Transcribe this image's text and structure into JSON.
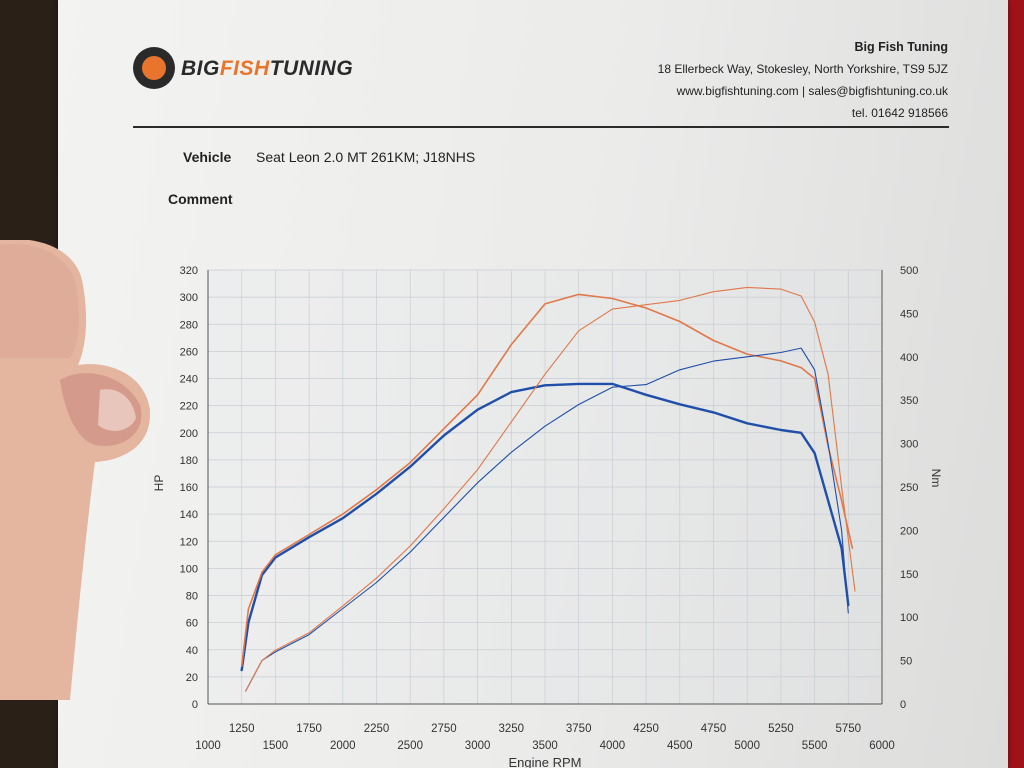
{
  "header": {
    "logo_part1": "BIG",
    "logo_part2": "FISH",
    "logo_part3": "TUNING",
    "company_name": "Big Fish Tuning",
    "address": "18 Ellerbeck Way, Stokesley, North Yorkshire, TS9 5JZ",
    "web_email": "www.bigfishtuning.com | sales@bigfishtuning.co.uk",
    "phone": "tel. 01642 918566"
  },
  "vehicle": {
    "label": "Vehicle",
    "value": "Seat Leon 2.0 MT 261KM; J18NHS"
  },
  "comment": {
    "label": "Comment"
  },
  "colors": {
    "power": "#1f4fa8",
    "torque": "#e0784a",
    "grid": "#c9cdd4",
    "axis": "#555555"
  },
  "chart_data": {
    "type": "line",
    "xlabel": "Engine RPM",
    "ylabel": "HP",
    "y2label": "Nm",
    "xlim": [
      1000,
      6000
    ],
    "ylim": [
      0,
      320
    ],
    "y2lim": [
      0,
      500
    ],
    "xticks": [
      "1000",
      "1250",
      "1500",
      "1750",
      "2000",
      "2250",
      "2500",
      "2750",
      "3000",
      "3250",
      "3500",
      "3750",
      "4000",
      "4250",
      "4500",
      "4750",
      "5000",
      "5250",
      "5500",
      "5750",
      "6000"
    ],
    "yticks": [
      "0",
      "20",
      "40",
      "60",
      "80",
      "100",
      "120",
      "140",
      "160",
      "180",
      "200",
      "220",
      "240",
      "260",
      "280",
      "300",
      "320"
    ],
    "y2ticks": [
      "0",
      "50",
      "100",
      "150",
      "200",
      "250",
      "300",
      "350",
      "400",
      "450",
      "500"
    ],
    "grid": true,
    "series": [
      {
        "axis": "left",
        "color": "#1f4fa8",
        "width": 2.4,
        "x": [
          1250,
          1300,
          1400,
          1500,
          1750,
          2000,
          2250,
          2500,
          2750,
          3000,
          3250,
          3500,
          3750,
          4000,
          4250,
          4500,
          4750,
          5000,
          5250,
          5400,
          5500,
          5600,
          5700,
          5750
        ],
        "y": [
          25,
          60,
          95,
          108,
          123,
          137,
          155,
          175,
          198,
          217,
          230,
          235,
          236,
          236,
          228,
          221,
          215,
          207,
          202,
          200,
          185,
          150,
          115,
          73
        ]
      },
      {
        "axis": "left",
        "color": "#e0784a",
        "width": 1.6,
        "x": [
          1250,
          1300,
          1400,
          1500,
          1750,
          2000,
          2250,
          2500,
          2750,
          3000,
          3250,
          3500,
          3750,
          4000,
          4250,
          4500,
          4750,
          5000,
          5250,
          5400,
          5500,
          5600,
          5700,
          5780
        ],
        "y": [
          28,
          70,
          97,
          110,
          125,
          140,
          158,
          178,
          203,
          228,
          265,
          295,
          302,
          299,
          292,
          282,
          268,
          258,
          253,
          248,
          240,
          190,
          150,
          115
        ]
      },
      {
        "axis": "right",
        "color": "#1f4fa8",
        "width": 1.1,
        "x": [
          1280,
          1400,
          1500,
          1750,
          2000,
          2250,
          2500,
          2750,
          3000,
          3250,
          3500,
          3750,
          4000,
          4250,
          4500,
          4750,
          5000,
          5250,
          5400,
          5500,
          5600,
          5700,
          5750
        ],
        "y": [
          15,
          50,
          60,
          80,
          110,
          140,
          175,
          215,
          255,
          290,
          320,
          345,
          365,
          368,
          385,
          395,
          400,
          405,
          410,
          385,
          300,
          200,
          105
        ]
      },
      {
        "axis": "right",
        "color": "#e0784a",
        "width": 1.1,
        "x": [
          1280,
          1400,
          1500,
          1750,
          2000,
          2250,
          2500,
          2750,
          3000,
          3250,
          3500,
          3750,
          4000,
          4250,
          4500,
          4750,
          5000,
          5250,
          5400,
          5500,
          5600,
          5700,
          5800
        ],
        "y": [
          15,
          50,
          62,
          82,
          113,
          145,
          182,
          225,
          270,
          325,
          380,
          430,
          455,
          460,
          465,
          475,
          480,
          478,
          470,
          440,
          380,
          250,
          130
        ]
      }
    ]
  }
}
